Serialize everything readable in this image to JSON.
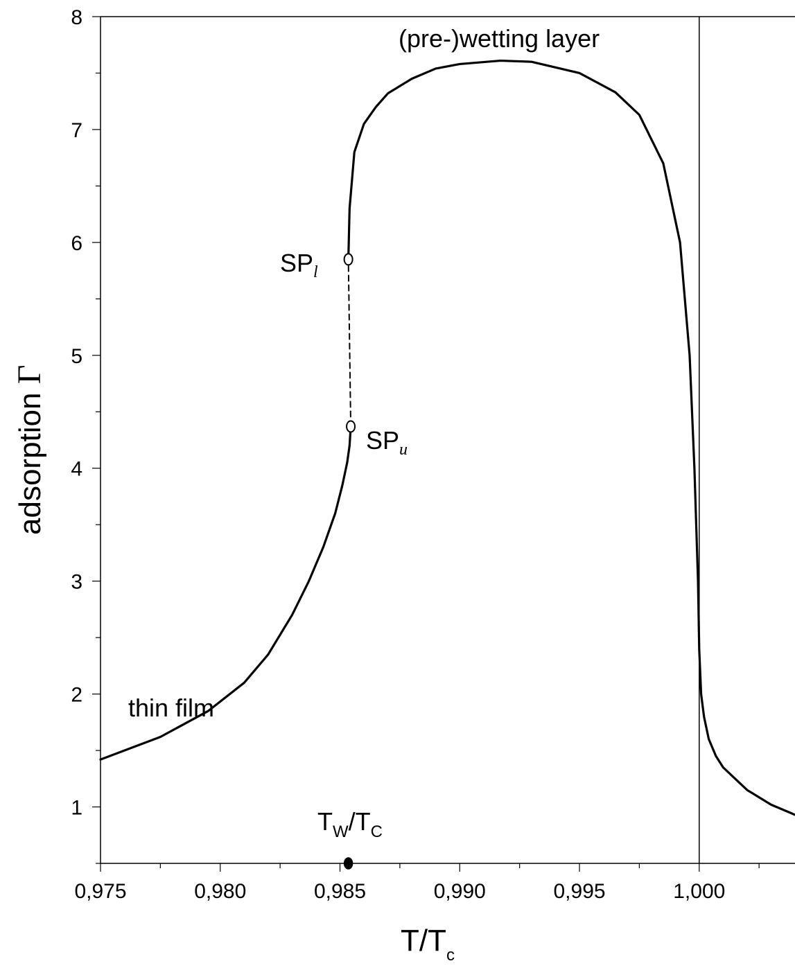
{
  "chart_data": {
    "type": "line",
    "xlabel": {
      "main": "T/T",
      "sub": "c"
    },
    "ylabel": {
      "main": "adsorption ",
      "symbol": "Γ"
    },
    "xlim": [
      0.975,
      1.004
    ],
    "ylim": [
      0.5,
      8
    ],
    "xticks": [
      {
        "value": 0.975,
        "label": "0,975"
      },
      {
        "value": 0.98,
        "label": "0,980"
      },
      {
        "value": 0.985,
        "label": "0,985"
      },
      {
        "value": 0.99,
        "label": "0,990"
      },
      {
        "value": 0.995,
        "label": "0,995"
      },
      {
        "value": 1.0,
        "label": "1,000"
      }
    ],
    "yticks": [
      {
        "value": 1,
        "label": "1"
      },
      {
        "value": 2,
        "label": "2"
      },
      {
        "value": 3,
        "label": "3"
      },
      {
        "value": 4,
        "label": "4"
      },
      {
        "value": 5,
        "label": "5"
      },
      {
        "value": 6,
        "label": "6"
      },
      {
        "value": 7,
        "label": "7"
      },
      {
        "value": 8,
        "label": "8"
      }
    ],
    "x_minor_step": 0.0025,
    "y_minor_step": 0.5,
    "grid": false,
    "reference_line_x": 1.0,
    "series": [
      {
        "style": "solid",
        "x": [
          0.975,
          0.9775,
          0.9795,
          0.981,
          0.982,
          0.983,
          0.9837,
          0.9843,
          0.9848,
          0.9851,
          0.9853,
          0.9854,
          0.98545
        ],
        "y": [
          1.42,
          1.62,
          1.85,
          2.1,
          2.35,
          2.7,
          3.0,
          3.3,
          3.6,
          3.85,
          4.05,
          4.2,
          4.37
        ]
      },
      {
        "style": "dashed",
        "x": [
          0.98545,
          0.98535
        ],
        "y": [
          4.37,
          5.85
        ]
      },
      {
        "style": "solid",
        "x": [
          0.98535,
          0.9854,
          0.9856,
          0.986,
          0.9865,
          0.987,
          0.988,
          0.989,
          0.99,
          0.9917,
          0.993,
          0.995,
          0.9965,
          0.9975,
          0.9985,
          0.9992,
          0.9996,
          0.9998,
          0.99995,
          1.0,
          1.00008,
          1.0002,
          1.0004,
          1.0007,
          1.001,
          1.0015,
          1.002,
          1.003,
          1.004
        ],
        "y": [
          5.85,
          6.3,
          6.8,
          7.05,
          7.2,
          7.32,
          7.45,
          7.54,
          7.58,
          7.61,
          7.6,
          7.5,
          7.33,
          7.13,
          6.7,
          6.0,
          5.0,
          4.0,
          3.0,
          2.4,
          2.0,
          1.8,
          1.6,
          1.45,
          1.35,
          1.25,
          1.15,
          1.02,
          0.93
        ]
      }
    ],
    "points": [
      {
        "name": "SP_l",
        "x": 0.98535,
        "y": 5.85,
        "fill": "open"
      },
      {
        "name": "SP_u",
        "x": 0.98545,
        "y": 4.37,
        "fill": "open"
      },
      {
        "name": "Tw/Tc",
        "x": 0.98535,
        "y": 0.5,
        "fill": "filled"
      }
    ],
    "annotations": {
      "top": "(pre-)wetting layer",
      "left": "thin film",
      "spl_main": "SP",
      "spl_sub": "l",
      "spu_main": "SP",
      "spu_sub": "u",
      "tw_main1": "T",
      "tw_sub1": "W",
      "tw_slash": "/T",
      "tw_sub2": "C"
    }
  }
}
